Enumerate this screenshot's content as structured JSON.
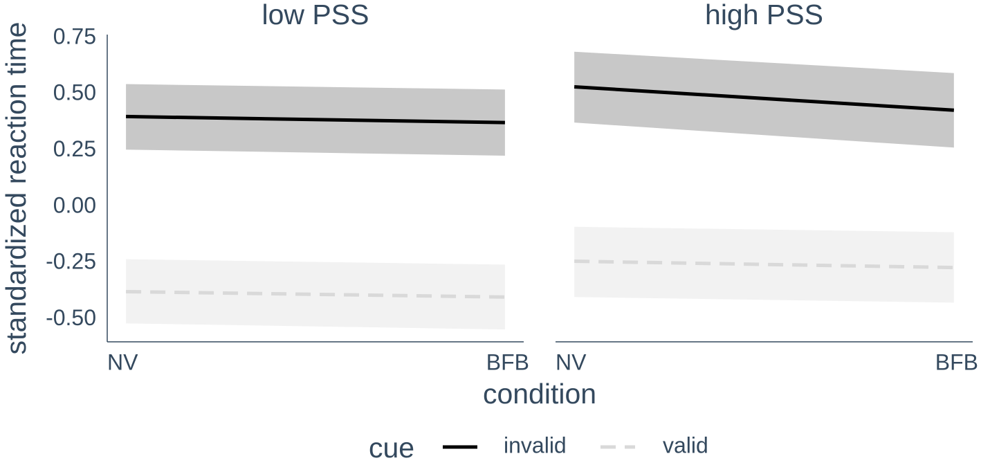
{
  "chart_data": [
    {
      "type": "line",
      "title": "low PSS",
      "categories": [
        "NV",
        "BFB"
      ],
      "ylim": [
        -0.6,
        0.765
      ],
      "yticks": [
        {
          "value": 0.75,
          "label": "0.75"
        },
        {
          "value": 0.5,
          "label": "0.50"
        },
        {
          "value": 0.25,
          "label": "0.25"
        },
        {
          "value": 0,
          "label": "0.00"
        },
        {
          "value": -0.25,
          "label": "-0.25"
        },
        {
          "value": -0.5,
          "label": "-0.50"
        }
      ],
      "series": [
        {
          "name": "invalid",
          "color": "#000000",
          "dash": false,
          "band_color": "#c8c8c8",
          "values": [
            0.401,
            0.374
          ],
          "lower": [
            0.254,
            0.227
          ],
          "upper": [
            0.545,
            0.521
          ]
        },
        {
          "name": "valid",
          "color": "#d9d9d9",
          "dash": true,
          "band_color": "#f2f2f2",
          "values": [
            -0.377,
            -0.401
          ],
          "lower": [
            -0.518,
            -0.545
          ],
          "upper": [
            -0.233,
            -0.257
          ]
        }
      ]
    },
    {
      "type": "line",
      "title": "high PSS",
      "categories": [
        "NV",
        "BFB"
      ],
      "ylim": [
        -0.6,
        0.765
      ],
      "series": [
        {
          "color": "#000000",
          "dash": false,
          "band_color": "#c8c8c8",
          "values": [
            0.533,
            0.429
          ],
          "lower": [
            0.374,
            0.263
          ],
          "upper": [
            0.689,
            0.594
          ]
        },
        {
          "color": "#d9d9d9",
          "dash": true,
          "band_color": "#f2f2f2",
          "values": [
            -0.242,
            -0.27
          ],
          "lower": [
            -0.401,
            -0.426
          ],
          "upper": [
            -0.089,
            -0.113
          ]
        }
      ]
    }
  ],
  "y_label": "standardized reaction time",
  "x_label": "condition",
  "legend_title": "cue"
}
